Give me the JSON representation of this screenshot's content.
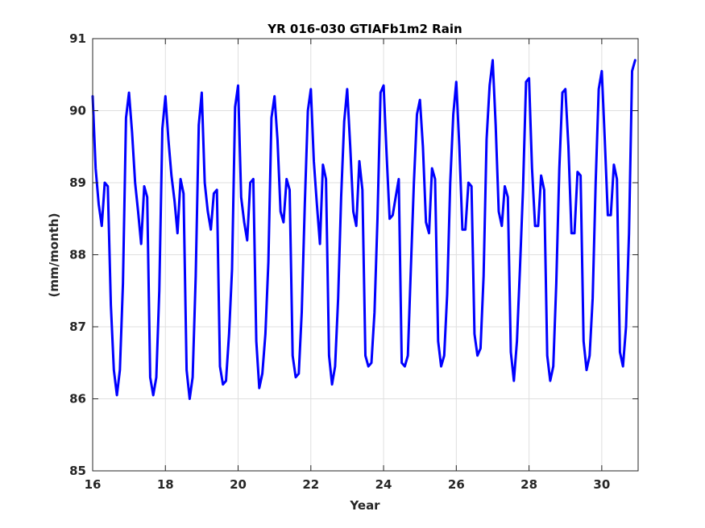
{
  "chart_data": {
    "type": "line",
    "title": "YR 016-030 GTIAFb1m2 Rain",
    "xlabel": "Year",
    "ylabel": "(mm/month)",
    "xlim": [
      16,
      31
    ],
    "ylim": [
      85,
      91
    ],
    "xticks": [
      16,
      18,
      20,
      22,
      24,
      26,
      28,
      30
    ],
    "yticks": [
      85,
      86,
      87,
      88,
      89,
      90,
      91
    ],
    "grid": true,
    "box": true,
    "series": [
      {
        "color": "#0000ff",
        "x": [
          16.0,
          16.083,
          16.167,
          16.25,
          16.333,
          16.417,
          16.5,
          16.583,
          16.667,
          16.75,
          16.833,
          16.917,
          17.0,
          17.083,
          17.167,
          17.25,
          17.333,
          17.417,
          17.5,
          17.583,
          17.667,
          17.75,
          17.833,
          17.917,
          18.0,
          18.083,
          18.167,
          18.25,
          18.333,
          18.417,
          18.5,
          18.583,
          18.667,
          18.75,
          18.833,
          18.917,
          19.0,
          19.083,
          19.167,
          19.25,
          19.333,
          19.417,
          19.5,
          19.583,
          19.667,
          19.75,
          19.833,
          19.917,
          20.0,
          20.083,
          20.167,
          20.25,
          20.333,
          20.417,
          20.5,
          20.583,
          20.667,
          20.75,
          20.833,
          20.917,
          21.0,
          21.083,
          21.167,
          21.25,
          21.333,
          21.417,
          21.5,
          21.583,
          21.667,
          21.75,
          21.833,
          21.917,
          22.0,
          22.083,
          22.167,
          22.25,
          22.333,
          22.417,
          22.5,
          22.583,
          22.667,
          22.75,
          22.833,
          22.917,
          23.0,
          23.083,
          23.167,
          23.25,
          23.333,
          23.417,
          23.5,
          23.583,
          23.667,
          23.75,
          23.833,
          23.917,
          24.0,
          24.083,
          24.167,
          24.25,
          24.333,
          24.417,
          24.5,
          24.583,
          24.667,
          24.75,
          24.833,
          24.917,
          25.0,
          25.083,
          25.167,
          25.25,
          25.333,
          25.417,
          25.5,
          25.583,
          25.667,
          25.75,
          25.833,
          25.917,
          26.0,
          26.083,
          26.167,
          26.25,
          26.333,
          26.417,
          26.5,
          26.583,
          26.667,
          26.75,
          26.833,
          26.917,
          27.0,
          27.083,
          27.167,
          27.25,
          27.333,
          27.417,
          27.5,
          27.583,
          27.667,
          27.75,
          27.833,
          27.917,
          28.0,
          28.083,
          28.167,
          28.25,
          28.333,
          28.417,
          28.5,
          28.583,
          28.667,
          28.75,
          28.833,
          28.917,
          29.0,
          29.083,
          29.167,
          29.25,
          29.333,
          29.417,
          29.5,
          29.583,
          29.667,
          29.75,
          29.833,
          29.917,
          30.0,
          30.083,
          30.167,
          30.25,
          30.333,
          30.417,
          30.5,
          30.583,
          30.667,
          30.75,
          30.833,
          30.917
        ],
        "y": [
          90.2,
          89.2,
          88.7,
          88.4,
          89.0,
          88.95,
          87.3,
          86.4,
          86.05,
          86.4,
          87.6,
          89.9,
          90.25,
          89.7,
          89.0,
          88.6,
          88.15,
          88.95,
          88.8,
          86.3,
          86.05,
          86.3,
          87.5,
          89.75,
          90.2,
          89.6,
          89.1,
          88.75,
          88.3,
          89.05,
          88.85,
          86.4,
          86.0,
          86.3,
          87.7,
          89.8,
          90.25,
          89.0,
          88.6,
          88.35,
          88.85,
          88.9,
          86.45,
          86.2,
          86.25,
          86.9,
          87.8,
          90.05,
          90.35,
          88.8,
          88.45,
          88.2,
          89.0,
          89.05,
          86.8,
          86.15,
          86.35,
          86.9,
          87.9,
          89.9,
          90.2,
          89.6,
          88.6,
          88.45,
          89.05,
          88.9,
          86.6,
          86.3,
          86.35,
          87.2,
          88.7,
          90.0,
          90.3,
          89.3,
          88.7,
          88.15,
          89.25,
          89.05,
          86.6,
          86.2,
          86.45,
          87.4,
          88.8,
          89.85,
          90.3,
          89.5,
          88.6,
          88.4,
          89.3,
          88.9,
          86.6,
          86.45,
          86.5,
          87.2,
          88.5,
          90.25,
          90.35,
          89.4,
          88.5,
          88.55,
          88.8,
          89.05,
          86.5,
          86.45,
          86.6,
          87.8,
          89.0,
          89.95,
          90.15,
          89.5,
          88.45,
          88.3,
          89.2,
          89.05,
          86.8,
          86.45,
          86.6,
          87.45,
          89.0,
          89.95,
          90.4,
          89.5,
          88.35,
          88.35,
          89.0,
          88.95,
          86.9,
          86.6,
          86.7,
          87.7,
          89.6,
          90.35,
          90.7,
          89.8,
          88.6,
          88.4,
          88.95,
          88.8,
          86.65,
          86.25,
          86.8,
          87.8,
          88.9,
          90.4,
          90.45,
          89.2,
          88.4,
          88.4,
          89.1,
          88.9,
          86.6,
          86.25,
          86.45,
          87.6,
          89.2,
          90.25,
          90.3,
          89.5,
          88.3,
          88.3,
          89.15,
          89.1,
          86.8,
          86.4,
          86.6,
          87.4,
          89.0,
          90.3,
          90.55,
          89.6,
          88.55,
          88.55,
          89.25,
          89.05,
          86.65,
          86.45,
          87.0,
          88.3,
          90.55,
          90.7
        ]
      }
    ]
  }
}
